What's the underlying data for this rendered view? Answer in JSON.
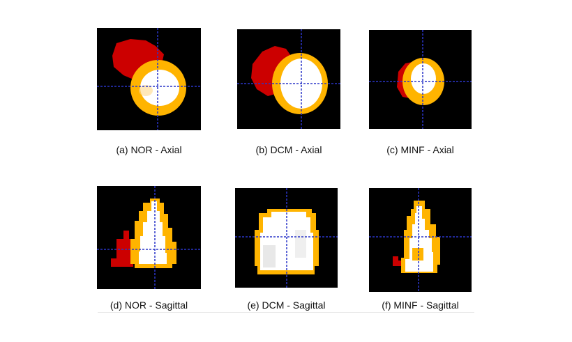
{
  "figure": {
    "colors": {
      "background": "#000000",
      "right_ventricle": "#cc0000",
      "myocardium": "#ffb400",
      "left_ventricle_cavity": "#ffffff",
      "crosshair": "#2a35c8"
    },
    "panels": [
      {
        "id": "a",
        "caption": "(a) NOR - Axial"
      },
      {
        "id": "b",
        "caption": "(b) DCM - Axial"
      },
      {
        "id": "c",
        "caption": "(c) MINF - Axial"
      },
      {
        "id": "d",
        "caption": "(d) NOR - Sagittal"
      },
      {
        "id": "e",
        "caption": "(e) DCM - Sagittal"
      },
      {
        "id": "f",
        "caption": "(f) MINF - Sagittal"
      }
    ]
  }
}
